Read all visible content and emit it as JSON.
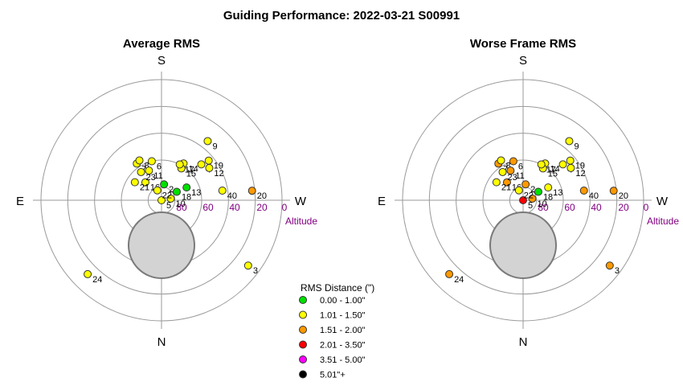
{
  "title": "Guiding Performance: 2022-03-21 S00991",
  "colors": {
    "ring": "#9a9a9a",
    "axis": "#9a9a9a",
    "altitude_label": "#800080",
    "zenith_fill": "#d3d3d3",
    "zenith_stroke": "#7a7a7a",
    "point_stroke": "#333333"
  },
  "legend": {
    "title": "RMS Distance (\")",
    "entries": [
      {
        "label": "0.00 - 1.00\"",
        "color": "#00e000"
      },
      {
        "label": "1.01 - 1.50\"",
        "color": "#ffff00"
      },
      {
        "label": "1.51 - 2.00\"",
        "color": "#ff9900"
      },
      {
        "label": "2.01 - 3.50\"",
        "color": "#ff0000"
      },
      {
        "label": "3.51 - 5.00\"",
        "color": "#ff00ff"
      },
      {
        "label": "5.01\"+",
        "color": "#000000"
      }
    ]
  },
  "chart_data": [
    {
      "type": "scatter",
      "subtype": "polar sky plot",
      "title": "Average RMS",
      "directions": {
        "top": "S",
        "bottom": "N",
        "left": "E",
        "right": "W"
      },
      "radial_axis": {
        "label": "Altitude",
        "ticks": [
          "80",
          "60",
          "40",
          "20",
          "0"
        ],
        "range": [
          90,
          0
        ]
      },
      "points": [
        {
          "label": "2",
          "az": 189,
          "alt": 78,
          "cls": 0
        },
        {
          "label": "3",
          "az": 307,
          "alt": 9,
          "cls": 1
        },
        {
          "label": "4",
          "az": 228,
          "alt": 50,
          "cls": 1
        },
        {
          "label": "5",
          "az": 340,
          "alt": 90,
          "cls": 1
        },
        {
          "label": "6",
          "az": 166,
          "alt": 60,
          "cls": 1
        },
        {
          "label": "7",
          "az": 146,
          "alt": 57,
          "cls": 1
        },
        {
          "label": "8",
          "az": 151,
          "alt": 56,
          "cls": 1
        },
        {
          "label": "9",
          "az": 218,
          "alt": 34,
          "cls": 1
        },
        {
          "label": "10",
          "az": 260,
          "alt": 83,
          "cls": 1
        },
        {
          "label": "11",
          "az": 157,
          "alt": 66,
          "cls": 1
        },
        {
          "label": "12",
          "az": 236,
          "alt": 47,
          "cls": 1
        },
        {
          "label": "13",
          "az": 243,
          "alt": 69,
          "cls": 0
        },
        {
          "label": "14",
          "az": 211,
          "alt": 58,
          "cls": 1
        },
        {
          "label": "15",
          "az": 212,
          "alt": 62,
          "cls": 1
        },
        {
          "label": "16",
          "az": 138,
          "alt": 72,
          "cls": 1
        },
        {
          "label": "17",
          "az": 207,
          "alt": 60,
          "cls": 1
        },
        {
          "label": "18",
          "az": 241,
          "alt": 77,
          "cls": 0
        },
        {
          "label": "19",
          "az": 230,
          "alt": 44,
          "cls": 1
        },
        {
          "label": "20",
          "az": 264,
          "alt": 22,
          "cls": 2
        },
        {
          "label": "21",
          "az": 124,
          "alt": 66,
          "cls": 1
        },
        {
          "label": "22",
          "az": 157,
          "alt": 82,
          "cls": 1
        },
        {
          "label": "23",
          "az": 144,
          "alt": 64,
          "cls": 1
        },
        {
          "label": "24",
          "az": 45,
          "alt": 12,
          "cls": 1
        },
        {
          "label": "40",
          "az": 261,
          "alt": 44,
          "cls": 1
        }
      ]
    },
    {
      "type": "scatter",
      "subtype": "polar sky plot",
      "title": "Worse Frame RMS",
      "directions": {
        "top": "S",
        "bottom": "N",
        "left": "E",
        "right": "W"
      },
      "radial_axis": {
        "label": "Altitude",
        "ticks": [
          "80",
          "60",
          "40",
          "20",
          "0"
        ],
        "range": [
          90,
          0
        ]
      },
      "points": [
        {
          "label": "2",
          "az": 189,
          "alt": 78,
          "cls": 2
        },
        {
          "label": "3",
          "az": 307,
          "alt": 9,
          "cls": 2
        },
        {
          "label": "4",
          "az": 228,
          "alt": 50,
          "cls": 1
        },
        {
          "label": "5",
          "az": 340,
          "alt": 90,
          "cls": 3
        },
        {
          "label": "6",
          "az": 166,
          "alt": 60,
          "cls": 2
        },
        {
          "label": "7",
          "az": 146,
          "alt": 57,
          "cls": 2
        },
        {
          "label": "8",
          "az": 151,
          "alt": 56,
          "cls": 1
        },
        {
          "label": "9",
          "az": 218,
          "alt": 34,
          "cls": 1
        },
        {
          "label": "10",
          "az": 260,
          "alt": 83,
          "cls": 2
        },
        {
          "label": "11",
          "az": 157,
          "alt": 66,
          "cls": 2
        },
        {
          "label": "12",
          "az": 236,
          "alt": 47,
          "cls": 1
        },
        {
          "label": "13",
          "az": 243,
          "alt": 69,
          "cls": 1
        },
        {
          "label": "14",
          "az": 211,
          "alt": 58,
          "cls": 1
        },
        {
          "label": "15",
          "az": 212,
          "alt": 62,
          "cls": 1
        },
        {
          "label": "16",
          "az": 138,
          "alt": 72,
          "cls": 2
        },
        {
          "label": "17",
          "az": 207,
          "alt": 60,
          "cls": 1
        },
        {
          "label": "18",
          "az": 241,
          "alt": 77,
          "cls": 0
        },
        {
          "label": "19",
          "az": 230,
          "alt": 44,
          "cls": 1
        },
        {
          "label": "20",
          "az": 264,
          "alt": 22,
          "cls": 2
        },
        {
          "label": "21",
          "az": 124,
          "alt": 66,
          "cls": 1
        },
        {
          "label": "22",
          "az": 157,
          "alt": 82,
          "cls": 1
        },
        {
          "label": "23",
          "az": 144,
          "alt": 64,
          "cls": 1
        },
        {
          "label": "24",
          "az": 45,
          "alt": 12,
          "cls": 2
        },
        {
          "label": "40",
          "az": 261,
          "alt": 44,
          "cls": 2
        }
      ]
    }
  ]
}
